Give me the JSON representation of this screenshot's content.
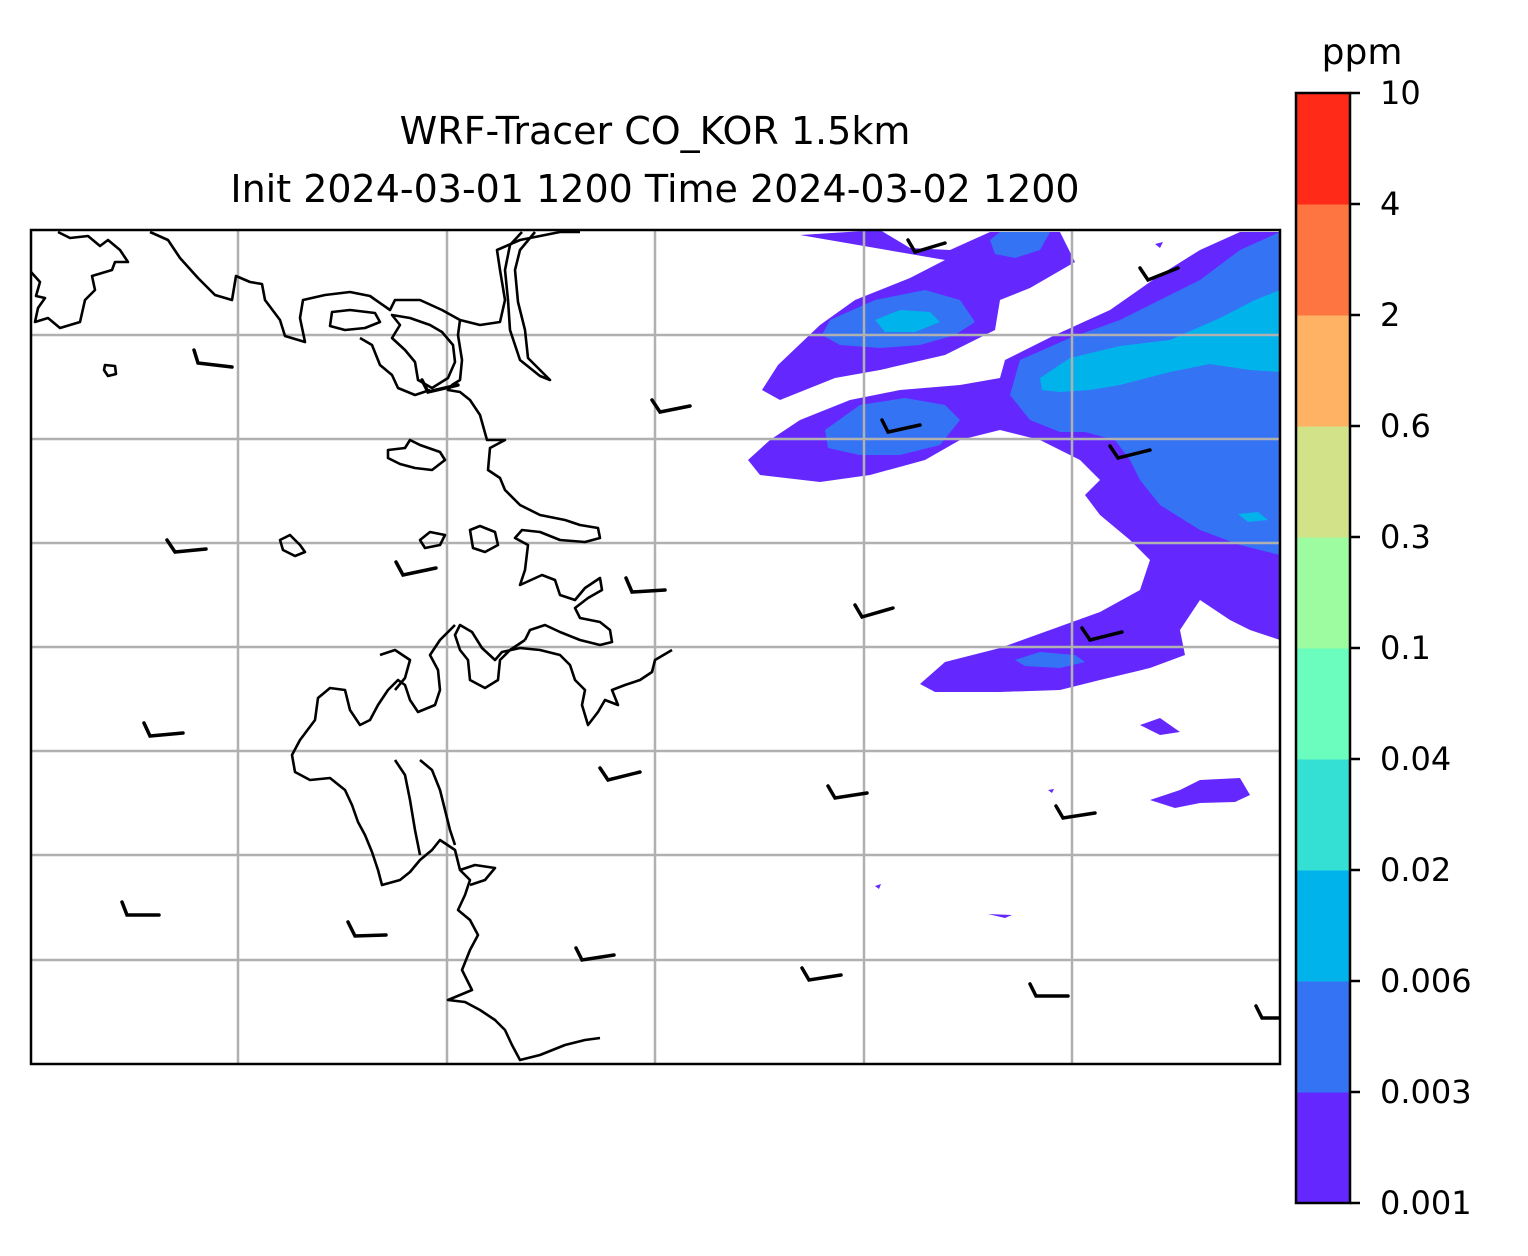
{
  "title": {
    "line1": "WRF-Tracer CO_KOR 1.5km",
    "line2": "Init 2024-03-01 1200 Time 2024-03-02 1200"
  },
  "colorbar": {
    "unit": "ppm",
    "levels": [
      "0.001",
      "0.003",
      "0.006",
      "0.02",
      "0.04",
      "0.1",
      "0.3",
      "0.6",
      "2",
      "4",
      "10"
    ],
    "colors": [
      "#6428ff",
      "#3573f5",
      "#00b4eb",
      "#34e0d4",
      "#6afdbe",
      "#9cfc9f",
      "#d2e289",
      "#ffb263",
      "#ff7542",
      "#ff2a18"
    ]
  },
  "map": {
    "grid": "on",
    "coastline_color": "#000000",
    "gridline_color": "#b0b0b0"
  }
}
